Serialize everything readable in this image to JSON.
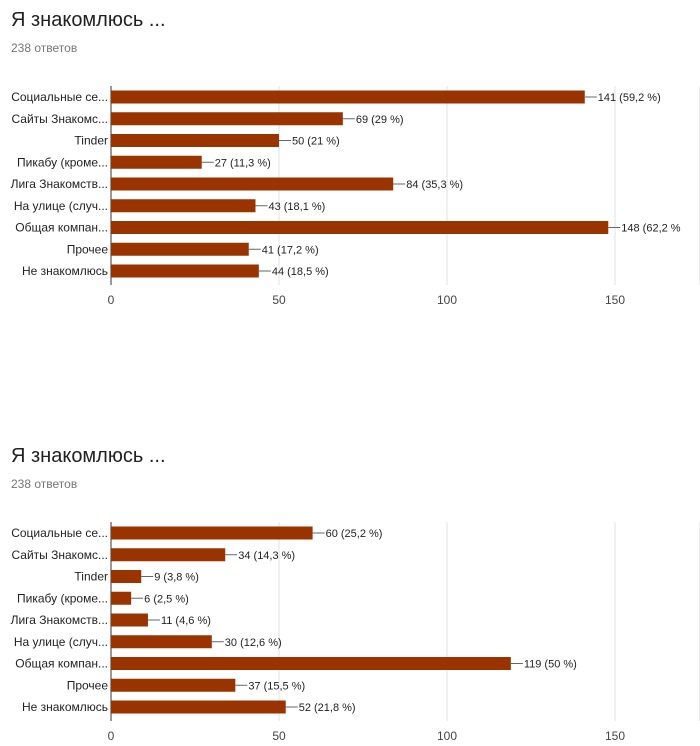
{
  "chart_data": [
    {
      "type": "bar",
      "orientation": "horizontal",
      "title": "Я знакомлюсь ...",
      "responses": "238 ответов",
      "categories": [
        "Социальные се...",
        "Сайты Знакомс...",
        "Tinder",
        "Пикабу (кроме...",
        "Лига Знакомств...",
        "На улице (случ...",
        "Общая компан...",
        "Прочее",
        "Не знакомлюсь"
      ],
      "values": [
        141,
        69,
        50,
        27,
        84,
        43,
        148,
        41,
        44
      ],
      "value_labels": [
        "141 (59,2 %)",
        "69 (29 %)",
        "50 (21 %)",
        "27 (11,3 %)",
        "84 (35,3 %)",
        "43 (18,1 %)",
        "148 (62,2 %",
        "41 (17,2 %)",
        "44 (18,5 %)"
      ],
      "xticks": [
        0,
        50,
        100,
        150
      ],
      "xlim": [
        0,
        175
      ],
      "grid": true,
      "bar_color": "#993300"
    },
    {
      "type": "bar",
      "orientation": "horizontal",
      "title": "Я знакомлюсь ...",
      "responses": "238 ответов",
      "categories": [
        "Социальные се...",
        "Сайты Знакомс...",
        "Tinder",
        "Пикабу (кроме...",
        "Лига Знакомств...",
        "На улице (случ...",
        "Общая компан...",
        "Прочее",
        "Не знакомлюсь"
      ],
      "values": [
        60,
        34,
        9,
        6,
        11,
        30,
        119,
        37,
        52
      ],
      "value_labels": [
        "60 (25,2 %)",
        "34 (14,3 %)",
        "9 (3,8 %)",
        "6 (2,5 %)",
        "11 (4,6 %)",
        "30 (12,6 %)",
        "119 (50 %)",
        "37 (15,5 %)",
        "52 (21,8 %)"
      ],
      "xticks": [
        0,
        50,
        100,
        150
      ],
      "xlim": [
        0,
        175
      ],
      "grid": true,
      "bar_color": "#993300"
    }
  ]
}
